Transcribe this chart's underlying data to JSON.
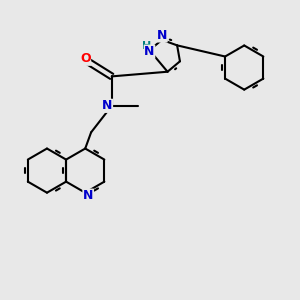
{
  "background_color": "#e8e8e8",
  "bond_color": "#000000",
  "atom_colors": {
    "N": "#0000cc",
    "O": "#ff0000",
    "NH": "#008080",
    "C": "#000000"
  },
  "font_size": 9,
  "font_size_small": 8
}
